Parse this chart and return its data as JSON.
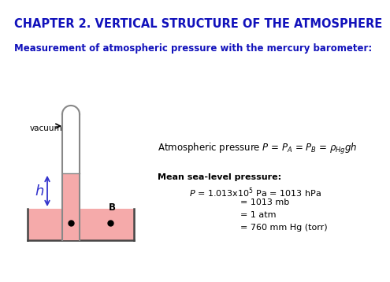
{
  "title": "CHAPTER 2. VERTICAL STRUCTURE OF THE ATMOSPHERE",
  "title_color": "#1111BB",
  "subtitle": "Measurement of atmospheric pressure with the mercury barometer:",
  "subtitle_color": "#1111BB",
  "bg_color": "#FFFFFF",
  "mercury_color": "#F5AAAA",
  "tube_color": "#AAAAAA",
  "formula_text": "Atmospheric pressure $\\itP$ = $\\itP$$_A$ = $\\itP$$_B$ = $\\rho_{Hg}$$\\itg$$\\ith$",
  "mean_pressure_title": "Mean sea-level pressure:",
  "mean_pressure_line1": "$\\itP$ = 1.013x10$^5$ Pa = 1013 hPa",
  "mean_pressure_line2": "= 1013 mb",
  "mean_pressure_line3": "= 1 atm",
  "mean_pressure_line4": "= 760 mm Hg (torr)",
  "h_color": "#3333CC",
  "vacuum_label": "vacuum"
}
